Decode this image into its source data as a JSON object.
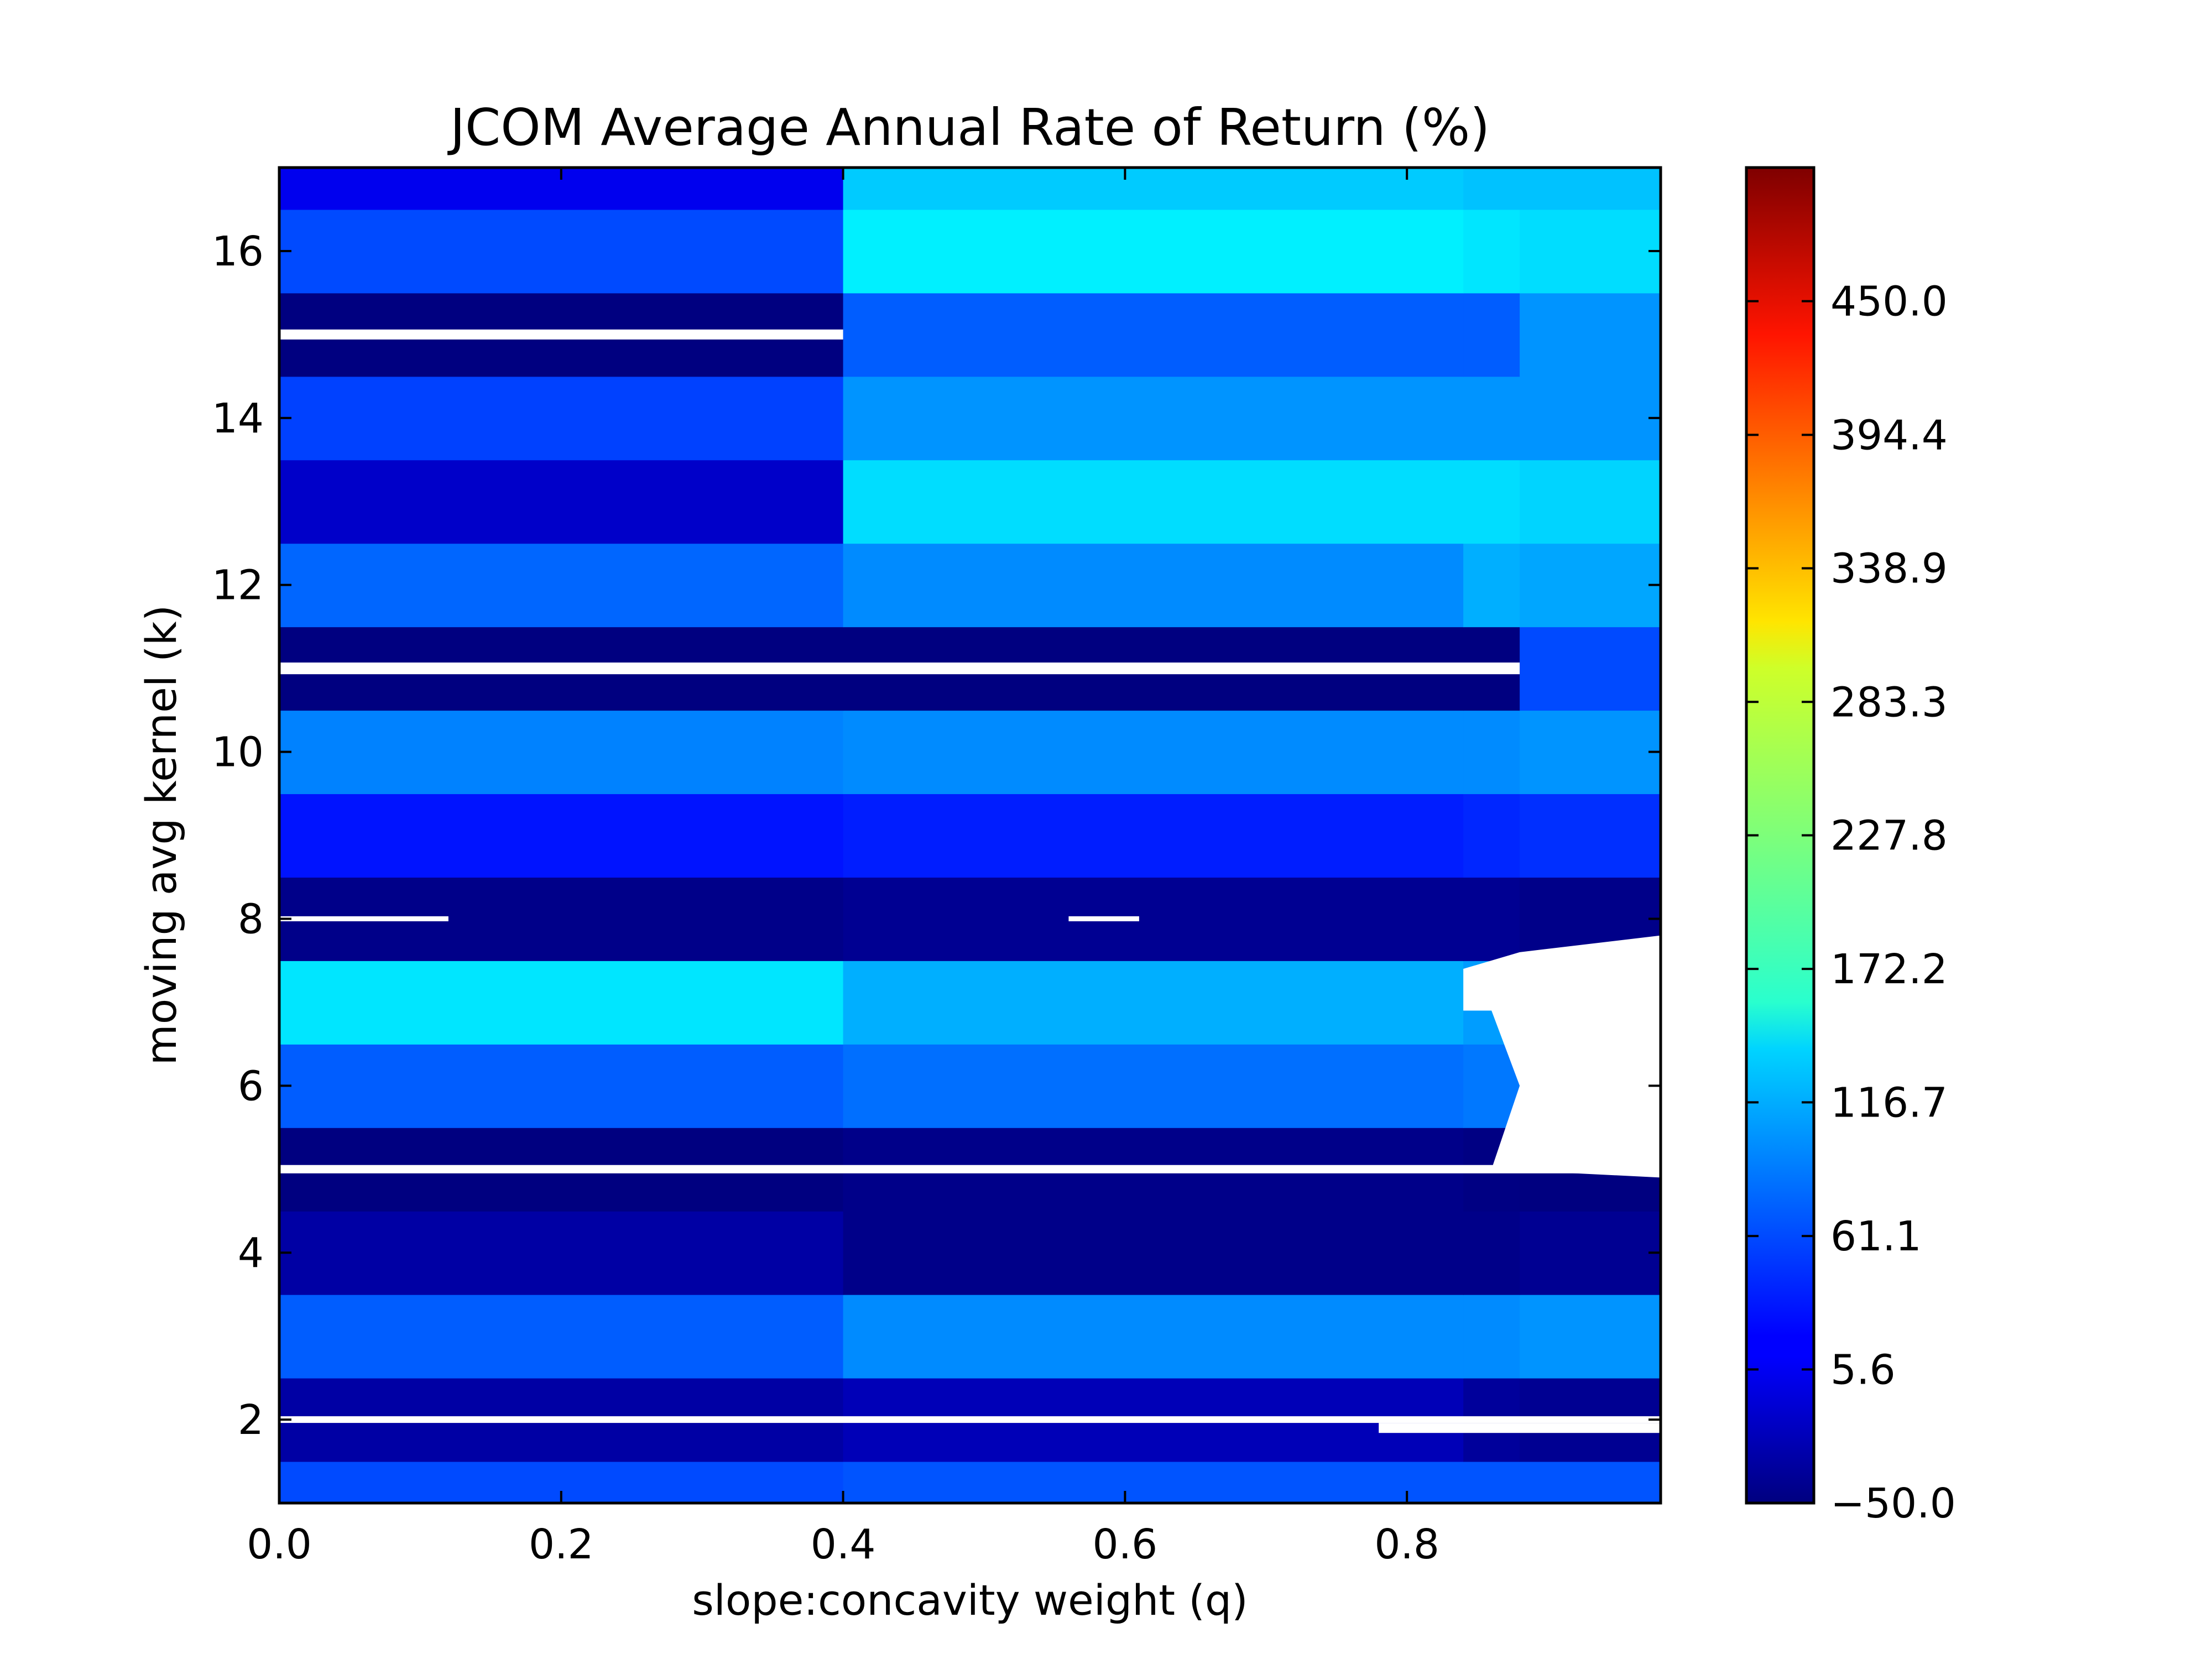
{
  "chart_data": {
    "type": "heatmap",
    "title": "JCOM Average Annual Rate of Return (%)",
    "xlabel": "slope:concavity weight (q)",
    "ylabel": "moving avg kernel (k)",
    "xlim": [
      0.0,
      0.98
    ],
    "ylim": [
      1,
      17
    ],
    "x_ticks": [
      "0.0",
      "0.2",
      "0.4",
      "0.6",
      "0.8"
    ],
    "y_ticks": [
      "2",
      "4",
      "6",
      "8",
      "10",
      "12",
      "14",
      "16"
    ],
    "colormap": "jet",
    "colorbar": {
      "range": [
        -50.0,
        505.6
      ],
      "ticks": [
        "−50.0",
        "5.6",
        "61.1",
        "116.7",
        "172.2",
        "227.8",
        "283.3",
        "338.9",
        "394.4",
        "450.0"
      ]
    },
    "k": [
      1,
      2,
      3,
      4,
      5,
      6,
      7,
      8,
      9,
      10,
      11,
      12,
      13,
      14,
      15,
      16,
      17
    ],
    "q_breaks": [
      0.0,
      0.4,
      0.84,
      0.88,
      0.98
    ],
    "rows": [
      {
        "k": 1,
        "values": [
          60,
          65,
          65,
          65
        ]
      },
      {
        "k": 2,
        "values": [
          -30,
          -20,
          -35,
          -40
        ]
      },
      {
        "k": 3,
        "values": [
          70,
          95,
          95,
          100
        ]
      },
      {
        "k": 4,
        "values": [
          -30,
          -45,
          -45,
          -40
        ]
      },
      {
        "k": 5,
        "values": [
          -50,
          -45,
          -48,
          -50
        ]
      },
      {
        "k": 6,
        "values": [
          70,
          80,
          85,
          null
        ]
      },
      {
        "k": 7,
        "values": [
          145,
          115,
          105,
          null
        ]
      },
      {
        "k": 8,
        "values": [
          -45,
          -40,
          -40,
          -45
        ]
      },
      {
        "k": 9,
        "values": [
          30,
          35,
          40,
          45
        ]
      },
      {
        "k": 10,
        "values": [
          90,
          95,
          95,
          100
        ]
      },
      {
        "k": 11,
        "values": [
          -60,
          -60,
          -60,
          60
        ]
      },
      {
        "k": 12,
        "values": [
          75,
          95,
          115,
          110
        ]
      },
      {
        "k": 13,
        "values": [
          -10,
          140,
          140,
          135
        ]
      },
      {
        "k": 14,
        "values": [
          55,
          100,
          100,
          100
        ]
      },
      {
        "k": 15,
        "values": [
          -60,
          70,
          70,
          100
        ]
      },
      {
        "k": 16,
        "values": [
          60,
          150,
          145,
          140
        ]
      },
      {
        "k": 17,
        "values": [
          10,
          130,
          125,
          125
        ]
      }
    ]
  }
}
